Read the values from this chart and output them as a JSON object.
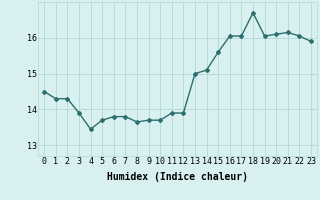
{
  "x": [
    0,
    1,
    2,
    3,
    4,
    5,
    6,
    7,
    8,
    9,
    10,
    11,
    12,
    13,
    14,
    15,
    16,
    17,
    18,
    19,
    20,
    21,
    22,
    23
  ],
  "y": [
    14.5,
    14.3,
    14.3,
    13.9,
    13.45,
    13.7,
    13.8,
    13.8,
    13.65,
    13.7,
    13.7,
    13.9,
    13.9,
    15.0,
    15.1,
    15.6,
    16.05,
    16.05,
    16.7,
    16.05,
    16.1,
    16.15,
    16.05,
    15.9
  ],
  "line_color": "#2d6e6e",
  "marker": "D",
  "marker_size": 2,
  "bg_color": "#d9f0f0",
  "grid_color": "#b0d8d8",
  "xlabel": "Humidex (Indice chaleur)",
  "xlabel_fontsize": 7,
  "yticks": [
    13,
    14,
    15,
    16
  ],
  "xticks": [
    0,
    1,
    2,
    3,
    4,
    5,
    6,
    7,
    8,
    9,
    10,
    11,
    12,
    13,
    14,
    15,
    16,
    17,
    18,
    19,
    20,
    21,
    22,
    23
  ],
  "ylim": [
    12.7,
    17.0
  ],
  "xlim": [
    -0.5,
    23.5
  ],
  "tick_fontsize": 6,
  "linewidth": 1.0
}
